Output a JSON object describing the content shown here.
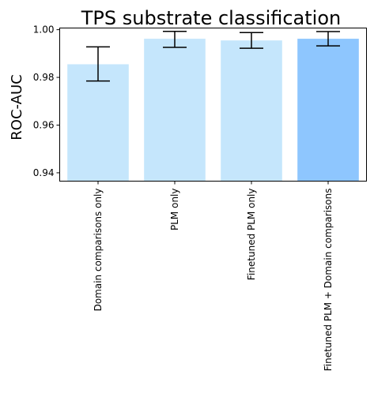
{
  "chart_data": {
    "type": "bar",
    "title": "TPS substrate classification",
    "xlabel": "",
    "ylabel": "ROC-AUC",
    "categories": [
      "Domain comparisons only",
      "PLM only",
      "Finetuned PLM only",
      "Finetuned PLM + Domain comparisons"
    ],
    "values": [
      0.9855,
      0.9962,
      0.9955,
      0.9962
    ],
    "error_low": [
      0.9785,
      0.9926,
      0.9922,
      0.9932
    ],
    "error_high": [
      0.9928,
      0.9993,
      0.9988,
      0.9992
    ],
    "ylim": [
      0.9365,
      1.0007
    ],
    "yticks": [
      0.94,
      0.96,
      0.98,
      1.0
    ],
    "ytick_labels": [
      "0.94",
      "0.96",
      "0.98",
      "1.00"
    ],
    "bar_colors": [
      "#c5e6fc",
      "#c5e6fc",
      "#c5e6fc",
      "#8ec6fe"
    ],
    "grid": false
  }
}
